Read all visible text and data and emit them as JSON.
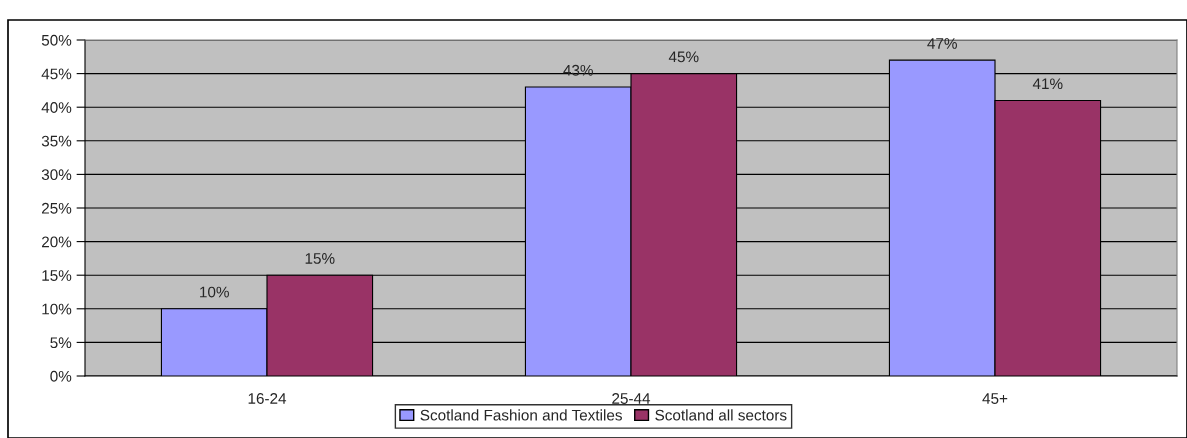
{
  "chart_data": {
    "type": "bar",
    "categories": [
      "16-24",
      "25-44",
      "45+"
    ],
    "series": [
      {
        "name": "Scotland Fashion and Textiles",
        "color": "#9999ff",
        "values": [
          10,
          43,
          47
        ],
        "value_labels": [
          "10%",
          "43%",
          "47%"
        ]
      },
      {
        "name": "Scotland all sectors",
        "color": "#993366",
        "values": [
          15,
          45,
          41
        ],
        "value_labels": [
          "15%",
          "45%",
          "41%"
        ]
      }
    ],
    "ylim": [
      0,
      50
    ],
    "yticks": [
      {
        "value": 0,
        "label": "0%"
      },
      {
        "value": 5,
        "label": "5%"
      },
      {
        "value": 10,
        "label": "10%"
      },
      {
        "value": 15,
        "label": "15%"
      },
      {
        "value": 20,
        "label": "20%"
      },
      {
        "value": 25,
        "label": "25%"
      },
      {
        "value": 30,
        "label": "30%"
      },
      {
        "value": 35,
        "label": "35%"
      },
      {
        "value": 40,
        "label": "40%"
      },
      {
        "value": 45,
        "label": "45%"
      },
      {
        "value": 50,
        "label": "50%"
      }
    ],
    "grid": "y",
    "legend": "bottom"
  }
}
